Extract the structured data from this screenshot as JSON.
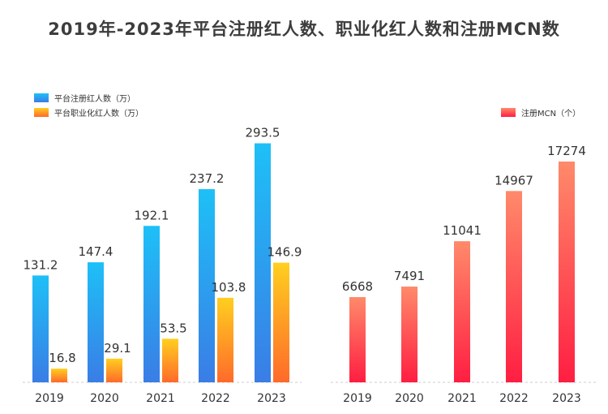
{
  "title": "2019年-2023年平台注册红人数、职业化红人数和注册MCN数",
  "colors": {
    "blue_top": "#1ec0f7",
    "blue_bottom": "#3a7de6",
    "orange_top": "#ffcf1f",
    "orange_bottom": "#ff6a2a",
    "red_top": "#ff8a6a",
    "red_bottom": "#ff1e42",
    "label": "#333333",
    "axis": "#cccccc"
  },
  "chart_data": [
    {
      "type": "bar",
      "categories": [
        "2019",
        "2020",
        "2021",
        "2022",
        "2023"
      ],
      "series": [
        {
          "name": "平台注册红人数（万）",
          "values": [
            131.2,
            147.4,
            192.1,
            237.2,
            293.5
          ],
          "value_labels": [
            "131.2",
            "147.4",
            "192.1",
            "237.2",
            "293.5"
          ]
        },
        {
          "name": "平台职业化红人数（万）",
          "values": [
            16.8,
            29.1,
            53.5,
            103.8,
            146.9
          ],
          "value_labels": [
            "16.8",
            "29.1",
            "53.5",
            "103.8",
            "146.9"
          ]
        }
      ],
      "ylim": [
        0,
        300
      ],
      "legend": "top-left",
      "grid": false
    },
    {
      "type": "bar",
      "categories": [
        "2019",
        "2020",
        "2021",
        "2022",
        "2023"
      ],
      "series": [
        {
          "name": "注册MCN（个）",
          "values": [
            6668,
            7491,
            11041,
            14967,
            17274
          ],
          "value_labels": [
            "6668",
            "7491",
            "11041",
            "14967",
            "17274"
          ]
        }
      ],
      "ylim": [
        0,
        18000
      ],
      "legend": "top-right",
      "grid": false
    }
  ]
}
